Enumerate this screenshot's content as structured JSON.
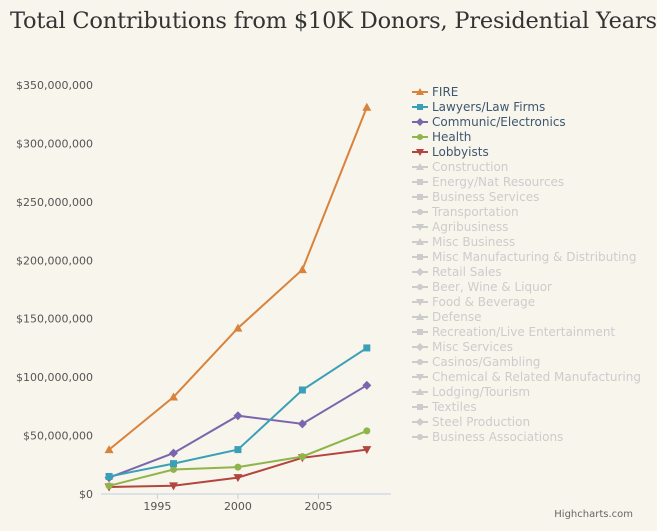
{
  "chart_data": {
    "type": "line",
    "title": "Total Contributions from $10K Donors, Presidential Years",
    "xlabel": "",
    "ylabel": "",
    "x_range": [
      1991.5,
      2009.5
    ],
    "ylim": [
      0,
      350000000
    ],
    "x_ticks": [
      1995,
      2000,
      2005
    ],
    "x_tick_labels": [
      "1995",
      "2000",
      "2005"
    ],
    "y_ticks": [
      0,
      50000000,
      100000000,
      150000000,
      200000000,
      250000000,
      300000000,
      350000000
    ],
    "y_tick_labels": [
      "$0",
      "$50,000,000",
      "$100,000,000",
      "$150,000,000",
      "$200,000,000",
      "$250,000,000",
      "$300,000,000",
      "$350,000,000"
    ],
    "x": [
      1992,
      1996,
      2000,
      2004,
      2008
    ],
    "legend_position": "right",
    "series": [
      {
        "name": "FIRE",
        "color": "#d9823b",
        "marker": "triangle",
        "visible": true,
        "values": [
          38000000,
          83000000,
          142000000,
          192000000,
          331000000
        ]
      },
      {
        "name": "Lawyers/Law Firms",
        "color": "#3aa0b8",
        "marker": "square",
        "visible": true,
        "values": [
          15000000,
          26000000,
          38000000,
          89000000,
          125000000
        ]
      },
      {
        "name": "Communic/Electronics",
        "color": "#7b66ad",
        "marker": "diamond",
        "visible": true,
        "values": [
          14000000,
          35000000,
          67000000,
          60000000,
          93000000
        ]
      },
      {
        "name": "Health",
        "color": "#8fb54a",
        "marker": "circle",
        "visible": true,
        "values": [
          7000000,
          21000000,
          23000000,
          32000000,
          54000000
        ]
      },
      {
        "name": "Lobbyists",
        "color": "#b2463f",
        "marker": "triangle-down",
        "visible": true,
        "values": [
          6000000,
          7000000,
          14000000,
          31000000,
          38000000
        ]
      },
      {
        "name": "Construction",
        "color": "#c8c8c8",
        "marker": "triangle",
        "visible": false
      },
      {
        "name": "Energy/Nat Resources",
        "color": "#c8c8c8",
        "marker": "square",
        "visible": false
      },
      {
        "name": "Business Services",
        "color": "#c8c8c8",
        "marker": "square",
        "visible": false
      },
      {
        "name": "Transportation",
        "color": "#c8c8c8",
        "marker": "circle",
        "visible": false
      },
      {
        "name": "Agribusiness",
        "color": "#c8c8c8",
        "marker": "triangle-down",
        "visible": false
      },
      {
        "name": "Misc Business",
        "color": "#c8c8c8",
        "marker": "triangle",
        "visible": false
      },
      {
        "name": "Misc Manufacturing & Distributing",
        "color": "#c8c8c8",
        "marker": "square",
        "visible": false
      },
      {
        "name": "Retail Sales",
        "color": "#c8c8c8",
        "marker": "diamond",
        "visible": false
      },
      {
        "name": "Beer, Wine & Liquor",
        "color": "#c8c8c8",
        "marker": "circle",
        "visible": false
      },
      {
        "name": "Food & Beverage",
        "color": "#c8c8c8",
        "marker": "triangle-down",
        "visible": false
      },
      {
        "name": "Defense",
        "color": "#c8c8c8",
        "marker": "triangle",
        "visible": false
      },
      {
        "name": "Recreation/Live Entertainment",
        "color": "#c8c8c8",
        "marker": "square",
        "visible": false
      },
      {
        "name": "Misc Services",
        "color": "#c8c8c8",
        "marker": "diamond",
        "visible": false
      },
      {
        "name": "Casinos/Gambling",
        "color": "#c8c8c8",
        "marker": "circle",
        "visible": false
      },
      {
        "name": "Chemical & Related Manufacturing",
        "color": "#c8c8c8",
        "marker": "triangle-down",
        "visible": false
      },
      {
        "name": "Lodging/Tourism",
        "color": "#c8c8c8",
        "marker": "triangle",
        "visible": false
      },
      {
        "name": "Textiles",
        "color": "#c8c8c8",
        "marker": "square",
        "visible": false
      },
      {
        "name": "Steel Production",
        "color": "#c8c8c8",
        "marker": "diamond",
        "visible": false
      },
      {
        "name": "Business Associations",
        "color": "#c8c8c8",
        "marker": "circle",
        "visible": false
      }
    ]
  },
  "credit": "Highcharts.com",
  "colors": {
    "background": "#f8f5ec",
    "axis": "#c0d0e0",
    "legend_active_text": "#3e576f",
    "legend_hidden_text": "#cccccc"
  }
}
